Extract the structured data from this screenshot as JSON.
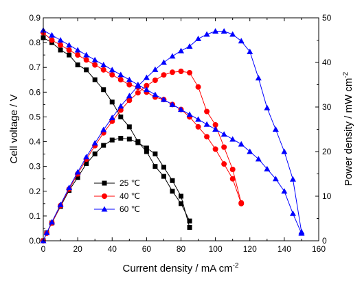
{
  "chart_data": {
    "type": "line",
    "title": "",
    "xlabel": "Current density / mA cm",
    "xlabel_sup": "-2",
    "ylabel_left": "Cell voltage / V",
    "ylabel_right": "Power density / mW cm",
    "ylabel_right_sup": "-2",
    "xlim": [
      0,
      160
    ],
    "ylim_left": [
      0,
      0.9
    ],
    "ylim_right": [
      0,
      50
    ],
    "x_ticks": [
      0,
      20,
      40,
      60,
      80,
      100,
      120,
      140,
      160
    ],
    "y_left_ticks": [
      0.0,
      0.1,
      0.2,
      0.3,
      0.4,
      0.5,
      0.6,
      0.7,
      0.8,
      0.9
    ],
    "y_left_tick_labels": [
      "0.0",
      "0.1",
      "0.2",
      "0.3",
      "0.4",
      "0.5",
      "0.6",
      "0.7",
      "0.8",
      "0.9"
    ],
    "y_right_ticks": [
      0,
      10,
      20,
      30,
      40,
      50
    ],
    "grid": false,
    "legend": {
      "placement": "lower-left",
      "entries": [
        "25 ℃",
        "40 ℃",
        "60 ℃"
      ]
    },
    "series": [
      {
        "name": "25 ℃",
        "color": "#000000",
        "marker": "square",
        "voltage": {
          "x": [
            0,
            5,
            10,
            15,
            20,
            25,
            30,
            35,
            40,
            45,
            50,
            55,
            60,
            65,
            70,
            75,
            80,
            85
          ],
          "y": [
            0.82,
            0.8,
            0.77,
            0.75,
            0.71,
            0.69,
            0.65,
            0.61,
            0.56,
            0.5,
            0.46,
            0.4,
            0.36,
            0.3,
            0.26,
            0.2,
            0.15,
            0.08
          ]
        },
        "power": {
          "x": [
            0,
            2,
            5,
            10,
            15,
            20,
            25,
            30,
            35,
            40,
            45,
            50,
            55,
            60,
            65,
            70,
            75,
            80,
            85
          ],
          "y": [
            0,
            1.8,
            4.0,
            7.7,
            11.3,
            14.2,
            17.3,
            19.5,
            21.4,
            22.6,
            23.0,
            22.8,
            22.0,
            20.8,
            19.5,
            16.5,
            13.5,
            10.0,
            3.0
          ]
        }
      },
      {
        "name": "40 ℃",
        "color": "#ff0000",
        "marker": "circle",
        "voltage": {
          "x": [
            0,
            5,
            10,
            15,
            20,
            25,
            30,
            35,
            40,
            45,
            50,
            55,
            60,
            65,
            70,
            75,
            80,
            85,
            90,
            95,
            100,
            105,
            110,
            115
          ],
          "y": [
            0.84,
            0.81,
            0.79,
            0.77,
            0.75,
            0.73,
            0.71,
            0.69,
            0.67,
            0.65,
            0.63,
            0.62,
            0.6,
            0.58,
            0.57,
            0.55,
            0.53,
            0.5,
            0.46,
            0.42,
            0.37,
            0.31,
            0.25,
            0.15
          ]
        },
        "power": {
          "x": [
            0,
            2,
            5,
            10,
            15,
            20,
            25,
            30,
            35,
            40,
            45,
            50,
            55,
            60,
            65,
            70,
            75,
            80,
            85,
            90,
            95,
            100,
            105,
            110,
            115
          ],
          "y": [
            0,
            1.7,
            4.0,
            7.9,
            11.6,
            15.0,
            18.3,
            21.3,
            24.2,
            26.8,
            29.3,
            31.5,
            33.2,
            34.8,
            36.0,
            37.2,
            37.8,
            38.0,
            37.7,
            34.5,
            29.0,
            26.0,
            21.0,
            16.0,
            8.5
          ]
        }
      },
      {
        "name": "60 ℃",
        "color": "#0000ff",
        "marker": "triangle",
        "voltage": {
          "x": [
            0,
            5,
            10,
            15,
            20,
            25,
            30,
            35,
            40,
            45,
            50,
            55,
            60,
            65,
            70,
            75,
            80,
            85,
            90,
            95,
            100,
            105,
            110,
            115,
            120,
            125,
            130,
            135,
            140,
            145,
            150
          ],
          "y": [
            0.85,
            0.83,
            0.81,
            0.79,
            0.77,
            0.75,
            0.73,
            0.71,
            0.69,
            0.67,
            0.65,
            0.63,
            0.61,
            0.59,
            0.57,
            0.55,
            0.53,
            0.51,
            0.49,
            0.47,
            0.45,
            0.43,
            0.41,
            0.39,
            0.36,
            0.33,
            0.29,
            0.25,
            0.2,
            0.11,
            0.03
          ]
        },
        "power": {
          "x": [
            0,
            2,
            5,
            10,
            15,
            20,
            25,
            30,
            35,
            40,
            45,
            50,
            55,
            60,
            65,
            70,
            75,
            80,
            85,
            90,
            95,
            100,
            105,
            110,
            115,
            120,
            125,
            130,
            135,
            140,
            145,
            150
          ],
          "y": [
            0,
            1.8,
            4.2,
            8.1,
            11.9,
            15.4,
            18.8,
            21.9,
            24.9,
            27.6,
            30.2,
            32.5,
            34.7,
            36.6,
            38.4,
            40.0,
            41.4,
            42.6,
            43.6,
            45.3,
            46.3,
            47.0,
            47.0,
            46.3,
            44.8,
            42.4,
            36.5,
            29.8,
            25.0,
            20.0,
            13.8,
            2.0
          ]
        }
      }
    ]
  }
}
